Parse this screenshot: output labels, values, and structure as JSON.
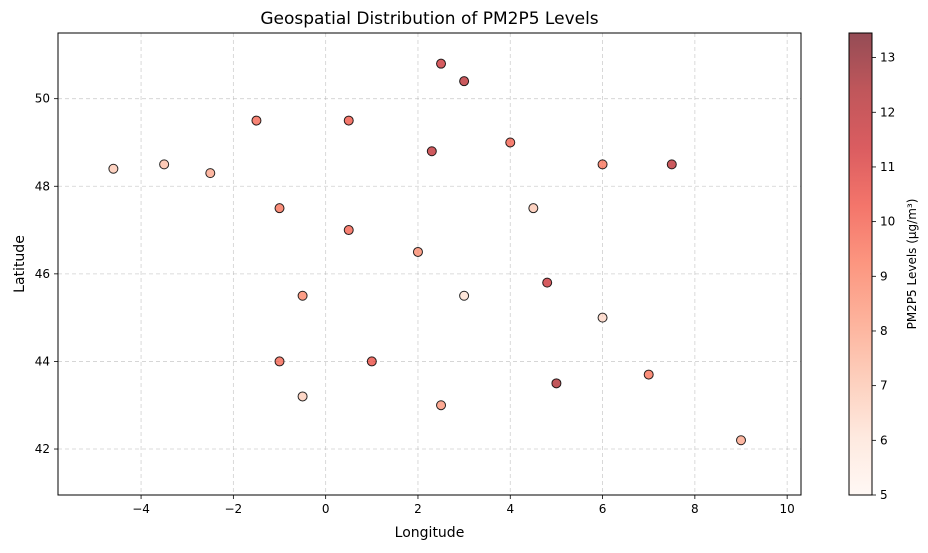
{
  "chart_data": {
    "type": "scatter",
    "title": "Geospatial Distribution of PM2P5 Levels",
    "xlabel": "Longitude",
    "ylabel": "Latitude",
    "xlim": [
      -5.8,
      10.3
    ],
    "ylim": [
      40.95,
      51.5
    ],
    "xticks": [
      -4,
      -2,
      0,
      2,
      4,
      6,
      8,
      10
    ],
    "yticks": [
      42,
      44,
      46,
      48,
      50
    ],
    "grid": true,
    "colorbar": {
      "label": "PM2P5 Levels (µg/m³)",
      "range": [
        5,
        13.45
      ],
      "ticks": [
        5,
        6,
        7,
        8,
        9,
        10,
        11,
        12,
        13
      ],
      "colormap": "Reds",
      "alpha": 0.7
    },
    "marker_edge_color": "#000000",
    "points": [
      {
        "lon": -4.6,
        "lat": 48.4,
        "pm25": 7.0
      },
      {
        "lon": -3.5,
        "lat": 48.5,
        "pm25": 7.3
      },
      {
        "lon": -2.5,
        "lat": 48.3,
        "pm25": 8.0
      },
      {
        "lon": -1.5,
        "lat": 49.5,
        "pm25": 9.8
      },
      {
        "lon": -1.0,
        "lat": 47.5,
        "pm25": 9.5
      },
      {
        "lon": -0.5,
        "lat": 45.5,
        "pm25": 9.0
      },
      {
        "lon": -1.0,
        "lat": 44.0,
        "pm25": 9.8
      },
      {
        "lon": -0.5,
        "lat": 43.2,
        "pm25": 6.8
      },
      {
        "lon": 0.5,
        "lat": 49.5,
        "pm25": 10.2
      },
      {
        "lon": 0.5,
        "lat": 47.0,
        "pm25": 9.9
      },
      {
        "lon": 1.0,
        "lat": 44.0,
        "pm25": 10.5
      },
      {
        "lon": 2.3,
        "lat": 48.8,
        "pm25": 11.8
      },
      {
        "lon": 2.5,
        "lat": 50.8,
        "pm25": 11.5
      },
      {
        "lon": 3.0,
        "lat": 50.4,
        "pm25": 12.0
      },
      {
        "lon": 2.0,
        "lat": 46.5,
        "pm25": 8.8
      },
      {
        "lon": 3.0,
        "lat": 45.5,
        "pm25": 6.2
      },
      {
        "lon": 2.5,
        "lat": 43.0,
        "pm25": 8.5
      },
      {
        "lon": 4.0,
        "lat": 49.0,
        "pm25": 10.0
      },
      {
        "lon": 4.5,
        "lat": 47.5,
        "pm25": 7.0
      },
      {
        "lon": 4.8,
        "lat": 45.8,
        "pm25": 11.5
      },
      {
        "lon": 5.0,
        "lat": 43.5,
        "pm25": 12.3
      },
      {
        "lon": 6.0,
        "lat": 48.5,
        "pm25": 9.5
      },
      {
        "lon": 7.5,
        "lat": 48.5,
        "pm25": 12.0
      },
      {
        "lon": 6.0,
        "lat": 45.0,
        "pm25": 6.5
      },
      {
        "lon": 7.0,
        "lat": 43.7,
        "pm25": 9.5
      },
      {
        "lon": 9.0,
        "lat": 42.2,
        "pm25": 8.0
      }
    ]
  }
}
